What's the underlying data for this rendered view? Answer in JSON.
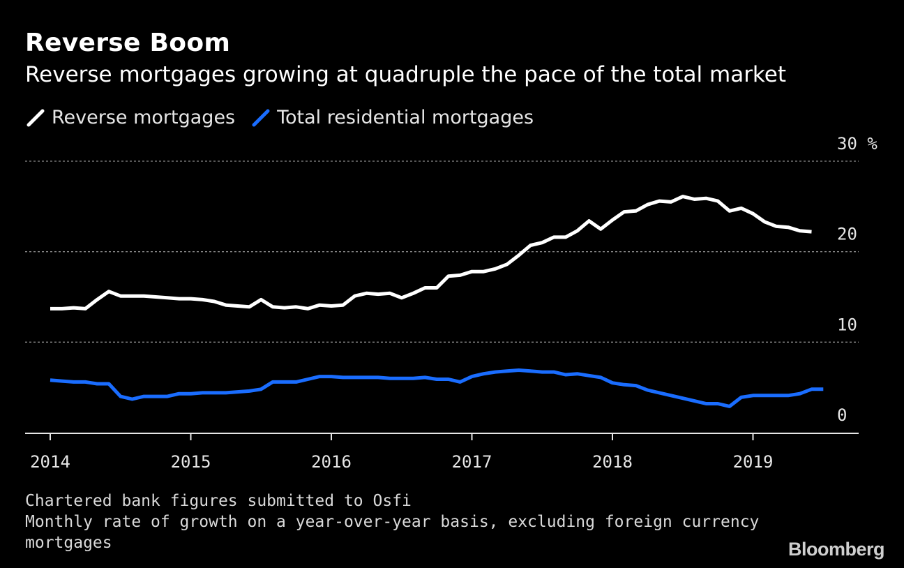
{
  "title": "Reverse Boom",
  "subtitle": "Reverse mortgages growing at quadruple the pace of the total market",
  "legend": [
    {
      "label": "Reverse mortgages",
      "color": "#ffffff"
    },
    {
      "label": "Total residential mortgages",
      "color": "#1a6dff"
    }
  ],
  "notes": [
    "Chartered bank figures submitted to Osfi",
    "Monthly rate of growth on a year-over-year basis, excluding foreign currency",
    "mortgages"
  ],
  "brand": "Bloomberg",
  "chart_data": {
    "type": "line",
    "title": "Reverse Boom",
    "subtitle": "Reverse mortgages growing at quadruple the pace of the total market",
    "ylabel": "",
    "y_unit": "%",
    "ylim": [
      0,
      30
    ],
    "yticks": [
      0,
      10,
      20,
      30
    ],
    "ytick_labels": [
      "0",
      "10",
      "20",
      "30 %"
    ],
    "xticks": [
      "2014",
      "2015",
      "2016",
      "2017",
      "2018",
      "2019"
    ],
    "x_start": "2014-01",
    "x_end_axis": "2019-12",
    "grid": "horizontal dotted",
    "legend_position": "top-left",
    "series": [
      {
        "name": "Reverse mortgages",
        "color": "#ffffff",
        "values": [
          13.7,
          13.7,
          13.8,
          13.7,
          14.7,
          15.6,
          15.1,
          15.1,
          15.1,
          15.0,
          14.9,
          14.8,
          14.8,
          14.7,
          14.5,
          14.1,
          14.0,
          13.9,
          14.7,
          13.9,
          13.8,
          13.9,
          13.7,
          14.1,
          14.0,
          14.1,
          15.1,
          15.4,
          15.3,
          15.4,
          14.9,
          15.4,
          16.0,
          16.0,
          17.3,
          17.4,
          17.8,
          17.8,
          18.1,
          18.6,
          19.6,
          20.7,
          21.0,
          21.6,
          21.6,
          22.3,
          23.4,
          22.5,
          23.5,
          24.4,
          24.5,
          25.2,
          25.6,
          25.5,
          26.1,
          25.8,
          25.9,
          25.6,
          24.5,
          24.8,
          24.2,
          23.3,
          22.8,
          22.7,
          22.3,
          22.2
        ]
      },
      {
        "name": "Total residential mortgages",
        "color": "#1a6dff",
        "values": [
          5.8,
          5.7,
          5.6,
          5.6,
          5.4,
          5.4,
          4.0,
          3.7,
          4.0,
          4.0,
          4.0,
          4.3,
          4.3,
          4.4,
          4.4,
          4.4,
          4.5,
          4.6,
          4.8,
          5.6,
          5.6,
          5.6,
          5.9,
          6.2,
          6.2,
          6.1,
          6.1,
          6.1,
          6.1,
          6.0,
          6.0,
          6.0,
          6.1,
          5.9,
          5.9,
          5.6,
          6.2,
          6.5,
          6.7,
          6.8,
          6.9,
          6.8,
          6.7,
          6.7,
          6.4,
          6.5,
          6.3,
          6.1,
          5.5,
          5.3,
          5.2,
          4.7,
          4.4,
          4.1,
          3.8,
          3.5,
          3.2,
          3.2,
          2.9,
          3.9,
          4.1,
          4.1,
          4.1,
          4.1,
          4.3,
          4.8,
          4.8
        ]
      }
    ]
  }
}
